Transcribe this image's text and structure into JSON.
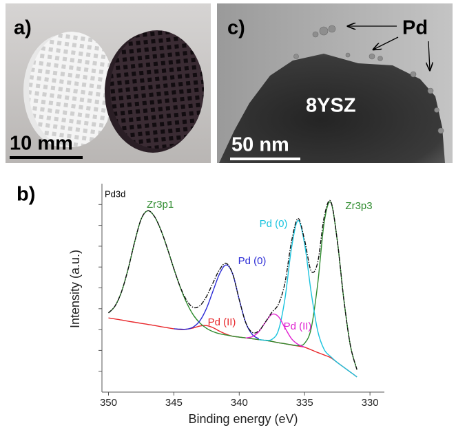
{
  "panels": [
    {
      "label": "a)",
      "scale_bar": "10 mm"
    },
    {
      "label": "c)",
      "scale_bar": "50 nm",
      "labels": [
        "Pd",
        "8YSZ"
      ]
    }
  ],
  "chart_data": {
    "type": "line",
    "panel_label": "b)",
    "xlabel": "Binding energy (eV)",
    "ylabel": "Intensity (a.u.)",
    "x": [
      350,
      349.5,
      349,
      348.5,
      348,
      347.5,
      347,
      346.5,
      346,
      345.5,
      345,
      344.5,
      344,
      343.5,
      343,
      342.5,
      342,
      341.5,
      341,
      340.5,
      340,
      339.5,
      339,
      338.5,
      338,
      337.5,
      337,
      336.5,
      336,
      335.5,
      335,
      334.5,
      334,
      333.5,
      333,
      332.5,
      332,
      331.5,
      331
    ],
    "xlim": [
      350.5,
      328.9
    ],
    "xticks": [
      350,
      345,
      340,
      335,
      330
    ],
    "ylim": [
      0,
      10
    ],
    "yticks": [
      1,
      2,
      3,
      4,
      5,
      6,
      7,
      8,
      9
    ],
    "series": [
      {
        "color": "#e8262a",
        "values": [
          3.56,
          3.51,
          3.46,
          3.4,
          3.35,
          3.3,
          3.25,
          3.2,
          3.14,
          3.09,
          3.04,
          3.0,
          3.02,
          3.08,
          3.17,
          3.19,
          3.09,
          2.92,
          2.78,
          2.68,
          2.64,
          2.6,
          2.56,
          2.52,
          2.48,
          2.43,
          2.37,
          2.32,
          2.26,
          2.21,
          2.15,
          2.03,
          1.9,
          1.78,
          1.65,
          1.42,
          1.19,
          0.96,
          0.73
        ]
      },
      {
        "color": "#2e8b2e",
        "values": [
          3.8,
          4.13,
          4.82,
          5.9,
          7.2,
          8.3,
          8.7,
          8.44,
          7.79,
          6.9,
          5.92,
          5.01,
          4.26,
          3.69,
          3.31,
          3.06,
          2.9,
          2.8,
          2.74,
          2.68,
          2.64,
          2.6,
          2.56,
          2.52,
          2.48,
          2.43,
          2.37,
          2.32,
          2.27,
          2.23,
          2.34,
          3.05,
          5.18,
          8.15,
          9.1,
          7.27,
          4.44,
          2.24,
          1.08
        ]
      },
      {
        "color": "#2b2bd6",
        "values": [
          null,
          null,
          null,
          null,
          null,
          null,
          null,
          null,
          null,
          null,
          3.04,
          3.02,
          3.02,
          3.13,
          3.43,
          4.02,
          4.86,
          5.68,
          6.1,
          5.67,
          4.44,
          3.33,
          2.76,
          2.56,
          null,
          null,
          null,
          null,
          null,
          null,
          null,
          null,
          null,
          null,
          null,
          null,
          null,
          null,
          null
        ]
      },
      {
        "color": "#19c3de",
        "values": [
          null,
          null,
          null,
          null,
          null,
          null,
          null,
          null,
          null,
          null,
          null,
          null,
          null,
          null,
          null,
          null,
          null,
          null,
          null,
          null,
          null,
          null,
          null,
          2.52,
          2.49,
          2.53,
          2.97,
          4.49,
          6.92,
          8.23,
          7.1,
          4.79,
          2.94,
          2.04,
          1.7,
          1.42,
          1.19,
          0.96,
          0.73
        ]
      },
      {
        "color": "#e020d0",
        "values": [
          null,
          null,
          null,
          null,
          null,
          null,
          null,
          null,
          null,
          null,
          null,
          null,
          null,
          null,
          null,
          null,
          null,
          null,
          null,
          null,
          null,
          2.6,
          2.66,
          2.9,
          3.35,
          3.73,
          3.62,
          3.08,
          2.56,
          2.29,
          2.16,
          null,
          null,
          null,
          null,
          null,
          null,
          null,
          null
        ]
      },
      {
        "color": "#111111",
        "dashed": true,
        "values": [
          3.8,
          4.13,
          4.82,
          5.9,
          7.2,
          8.3,
          8.7,
          8.44,
          7.79,
          6.9,
          5.92,
          5.03,
          4.38,
          4.06,
          4.15,
          4.59,
          5.25,
          5.88,
          6.18,
          5.67,
          4.44,
          3.33,
          2.86,
          2.94,
          3.36,
          3.83,
          4.22,
          5.25,
          7.23,
          8.33,
          7.29,
          5.81,
          6.22,
          8.41,
          9.15,
          7.27,
          4.44,
          2.24,
          1.08
        ]
      }
    ],
    "annotations": [
      {
        "text": "Pd3d",
        "color": "#000000"
      },
      {
        "text": "Zr3p1",
        "color": "#2e8b2e"
      },
      {
        "text": "Pd (0)",
        "color": "#2b2bd6"
      },
      {
        "text": "Pd (II)",
        "color": "#e8262a"
      },
      {
        "text": "Pd (0)",
        "color": "#19c3de"
      },
      {
        "text": "Pd (II)",
        "color": "#e020d0"
      },
      {
        "text": "Zr3p3",
        "color": "#2e8b2e"
      }
    ]
  }
}
